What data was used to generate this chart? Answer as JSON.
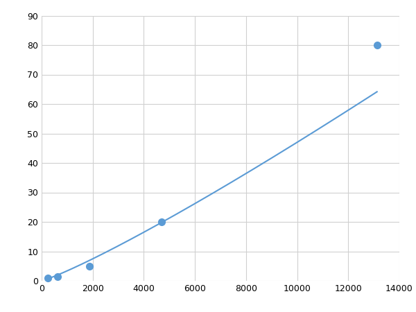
{
  "x": [
    250,
    625,
    1875,
    4688,
    13125
  ],
  "y": [
    1,
    1.5,
    5,
    20,
    80
  ],
  "line_color": "#5b9bd5",
  "marker_color": "#5b9bd5",
  "marker_size": 7,
  "line_width": 1.5,
  "xlim": [
    0,
    14000
  ],
  "ylim": [
    0,
    90
  ],
  "xticks": [
    0,
    2000,
    4000,
    6000,
    8000,
    10000,
    12000,
    14000
  ],
  "yticks": [
    0,
    10,
    20,
    30,
    40,
    50,
    60,
    70,
    80,
    90
  ],
  "grid_color": "#d0d0d0",
  "background_color": "#ffffff",
  "figure_background": "#ffffff"
}
